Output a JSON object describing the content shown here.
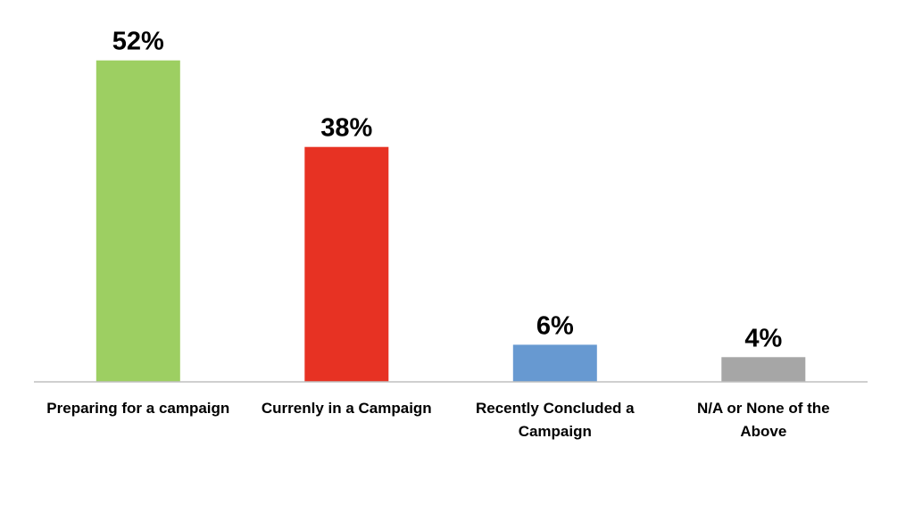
{
  "chart_data": {
    "type": "bar",
    "title": "",
    "xlabel": "",
    "ylabel": "",
    "ylim": [
      0,
      56
    ],
    "grid": false,
    "legend": "none",
    "categories": [
      "Preparing for a campaign",
      "Currenly in a Campaign",
      "Recently Concluded a Campaign",
      "N/A or None of the Above"
    ],
    "category_lines": [
      [
        "Preparing for a campaign"
      ],
      [
        "Currenly in a Campaign"
      ],
      [
        "Recently Concluded a",
        "Campaign"
      ],
      [
        "N/A or None of the",
        "Above"
      ]
    ],
    "values": [
      52,
      38,
      6,
      4
    ],
    "value_labels": [
      "52%",
      "38%",
      "6%",
      "4%"
    ],
    "colors": [
      "#9dcf62",
      "#e73223",
      "#6799d1",
      "#a6a6a6"
    ]
  }
}
